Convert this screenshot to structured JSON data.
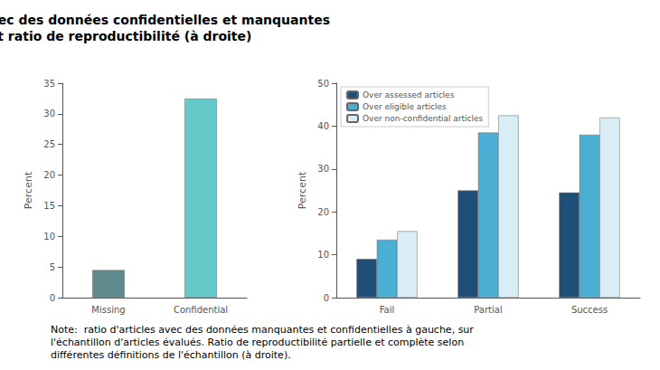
{
  "chart_data": [
    {
      "type": "bar",
      "title": "Proportion d'articles avec des données confidentielles et manquantes\n(à gauche) et ratio de reproductibilité (à droite)",
      "categories": [
        "Missing",
        "Confidential"
      ],
      "values": [
        4.5,
        32.5
      ],
      "colors": [
        "#5f8a8b",
        "#66c8c8"
      ],
      "ylabel": "Percent",
      "ylim": [
        0,
        35
      ],
      "yticks": [
        0,
        5,
        10,
        15,
        20,
        25,
        30,
        35
      ],
      "grid": false,
      "annotations": [
        "Note:  ratio d'articles avec des données manquantes et confidentielles à gauche, sur\nl'échantillon d'articles évalués. Ratio de reproductibilité partielle et complète selon\ndifférentes définitions de l'échantillon (à droite)."
      ]
    },
    {
      "type": "bar",
      "categories": [
        "Fail",
        "Partial",
        "Success"
      ],
      "series": [
        {
          "name": "Over assessed articles",
          "color": "#1f4e79",
          "values": [
            9.0,
            25.0,
            24.5
          ]
        },
        {
          "name": "Over eligible articles",
          "color": "#4bafd4",
          "values": [
            13.5,
            38.5,
            38.0
          ]
        },
        {
          "name": "Over non-confidential articles",
          "color": "#d9edf7",
          "values": [
            15.5,
            42.5,
            42.0
          ]
        }
      ],
      "ylabel": "Percent",
      "ylim": [
        0,
        50
      ],
      "yticks": [
        0,
        10,
        20,
        30,
        40,
        50
      ],
      "legend": "upper left",
      "grid": false
    }
  ]
}
